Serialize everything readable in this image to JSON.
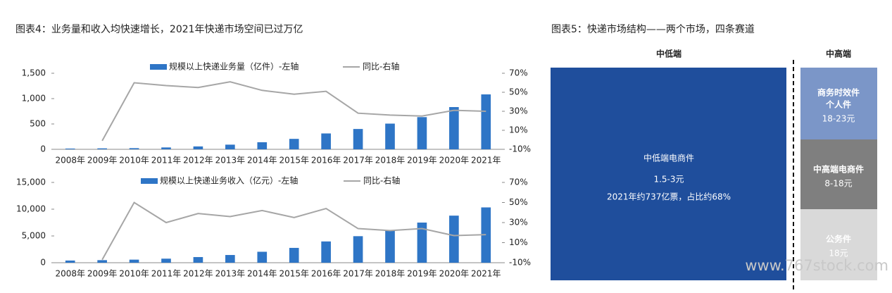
{
  "figure4_title": "图表4：业务量和收入均快速增长，2021年快递市场空间已过万亿",
  "chart_data": [
    {
      "type": "bar",
      "categories": [
        "2008年",
        "2009年",
        "2010年",
        "2011年",
        "2012年",
        "2013年",
        "2014年",
        "2015年",
        "2016年",
        "2017年",
        "2018年",
        "2019年",
        "2020年",
        "2021年"
      ],
      "series": [
        {
          "name": "规模以上快递业务量（亿件）-左轴",
          "type": "bar",
          "color": "#2e75c6",
          "values": [
            15,
            19,
            23,
            37,
            57,
            92,
            140,
            206,
            313,
            401,
            507,
            635,
            833,
            1083
          ]
        },
        {
          "name": "同比-右轴",
          "type": "line",
          "axis": "y2",
          "color": "#a6a6a6",
          "values": [
            null,
            -1,
            60,
            57,
            55,
            61,
            52,
            48,
            51,
            28,
            26,
            25,
            31,
            30
          ]
        }
      ],
      "ylim": [
        0,
        1500
      ],
      "yticks": [
        0,
        500,
        {
          "value": 1000,
          "label": "1,000"
        },
        {
          "value": 1500,
          "label": "1,500"
        }
      ],
      "y2lim": [
        -10,
        70
      ],
      "y2ticks": [
        {
          "value": -10,
          "label": "-10%"
        },
        {
          "value": 10,
          "label": "10%"
        },
        {
          "value": 30,
          "label": "30%"
        },
        {
          "value": 50,
          "label": "50%"
        },
        {
          "value": 70,
          "label": "70%"
        }
      ]
    },
    {
      "type": "bar",
      "categories": [
        "2008年",
        "2009年",
        "2010年",
        "2011年",
        "2012年",
        "2013年",
        "2014年",
        "2015年",
        "2016年",
        "2017年",
        "2018年",
        "2019年",
        "2020年",
        "2021年"
      ],
      "series": [
        {
          "name": "规模以上快递业务收入（亿元）-左轴",
          "type": "bar",
          "color": "#2e75c6",
          "values": [
            408,
            479,
            575,
            758,
            1055,
            1442,
            2045,
            2770,
            3974,
            4957,
            6038,
            7498,
            8795,
            10332
          ]
        },
        {
          "name": "同比-右轴",
          "type": "line",
          "axis": "y2",
          "color": "#a6a6a6",
          "values": [
            null,
            -7,
            50,
            30,
            39,
            36,
            42,
            35,
            44,
            24,
            22,
            24,
            17,
            18
          ]
        }
      ],
      "ylim": [
        0,
        15000
      ],
      "yticks": [
        0,
        {
          "value": 5000,
          "label": "5,000"
        },
        {
          "value": 10000,
          "label": "10,000"
        },
        {
          "value": 15000,
          "label": "15,000"
        }
      ],
      "y2lim": [
        -10,
        70
      ],
      "y2ticks": [
        {
          "value": -10,
          "label": "-10%"
        },
        {
          "value": 10,
          "label": "10%"
        },
        {
          "value": 30,
          "label": "30%"
        },
        {
          "value": 50,
          "label": "50%"
        },
        {
          "value": 70,
          "label": "70%"
        }
      ]
    }
  ],
  "diagram": {
    "title": "图表5：快递市场结构——两个市场，四条赛道",
    "low_header": "中低端",
    "high_header": "中高端",
    "low_box": {
      "label": "中低端电商件",
      "price": "1.5-3元",
      "note": "2021年约737亿票，占比约68%"
    },
    "high_boxes": [
      {
        "label_lines": [
          "商务时效件",
          "个人件"
        ],
        "price": "18-23元"
      },
      {
        "label_lines": [
          "中高端电商件"
        ],
        "price": "8-18元"
      },
      {
        "label_lines": [
          "公务件"
        ],
        "price": "18元"
      }
    ]
  },
  "watermark": "www.767stock.com"
}
